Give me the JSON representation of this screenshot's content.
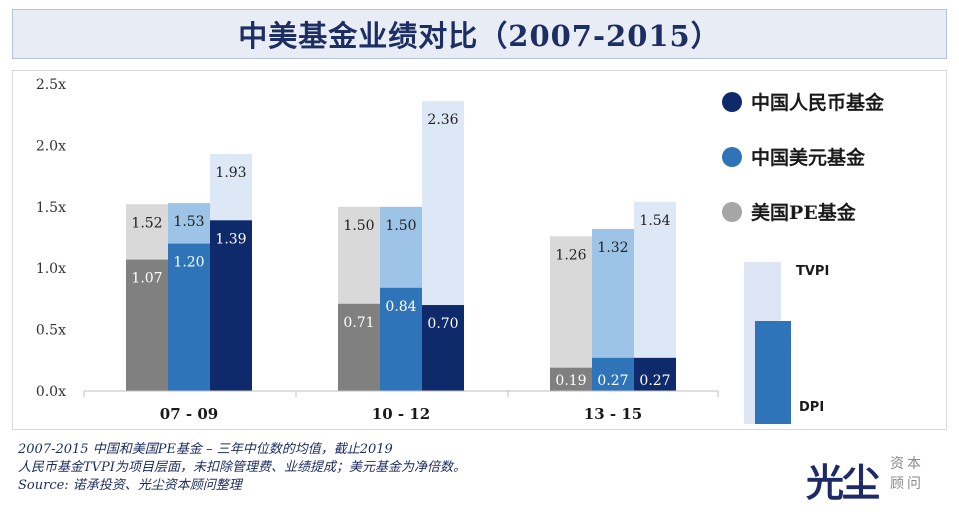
{
  "title": "中美基金业绩对比（2007-2015）",
  "chart_data": {
    "type": "bar",
    "categories": [
      "07 - 09",
      "10 - 12",
      "13 - 15"
    ],
    "y_ticks": [
      "0.0x",
      "0.5x",
      "1.0x",
      "1.5x",
      "2.0x",
      "2.5x"
    ],
    "ylim": [
      0,
      2.5
    ],
    "series": [
      {
        "name": "美国PE基金",
        "legend_color": "#a6a6a6",
        "tvpi_color": "#d9d9d9",
        "dpi_color": "#808080",
        "tvpi": [
          1.52,
          1.5,
          1.26
        ],
        "dpi": [
          1.07,
          0.71,
          0.19
        ],
        "tvpi_labels": [
          "1.52",
          "1.50",
          "1.26"
        ],
        "dpi_labels": [
          "1.07",
          "0.71",
          "0.19"
        ]
      },
      {
        "name": "中国美元基金",
        "legend_color": "#2f74b8",
        "tvpi_color": "#9dc3e6",
        "dpi_color": "#2f74b8",
        "tvpi": [
          1.53,
          1.5,
          1.32
        ],
        "dpi": [
          1.2,
          0.84,
          0.27
        ],
        "tvpi_labels": [
          "1.53",
          "1.50",
          "1.32"
        ],
        "dpi_labels": [
          "1.20",
          "0.84",
          "0.27"
        ]
      },
      {
        "name": "中国人民币基金",
        "legend_color": "#0f2a6b",
        "tvpi_color": "#dde8f7",
        "dpi_color": "#0f2a6b",
        "tvpi": [
          1.93,
          2.36,
          1.54
        ],
        "dpi": [
          1.39,
          0.7,
          0.27
        ],
        "tvpi_labels": [
          "1.93",
          "2.36",
          "1.54"
        ],
        "dpi_labels": [
          "1.39",
          "0.70",
          "0.27"
        ]
      }
    ],
    "legend_order": [
      2,
      1,
      0
    ],
    "legend_placement": "right",
    "grid": false
  },
  "key": {
    "tvpi_label": "TVPI",
    "dpi_label": "DPI"
  },
  "notes": [
    "2007-2015 中国和美国PE基金 – 三年中位数的均值，截止2019",
    "人民币基金TVPI为项目层面，未扣除管理费、业绩提成；美元基金为净倍数。",
    "Source: 诺承投资、光尘资本顾问整理"
  ],
  "logo": {
    "main": "光尘",
    "sub": "资本顾问"
  }
}
